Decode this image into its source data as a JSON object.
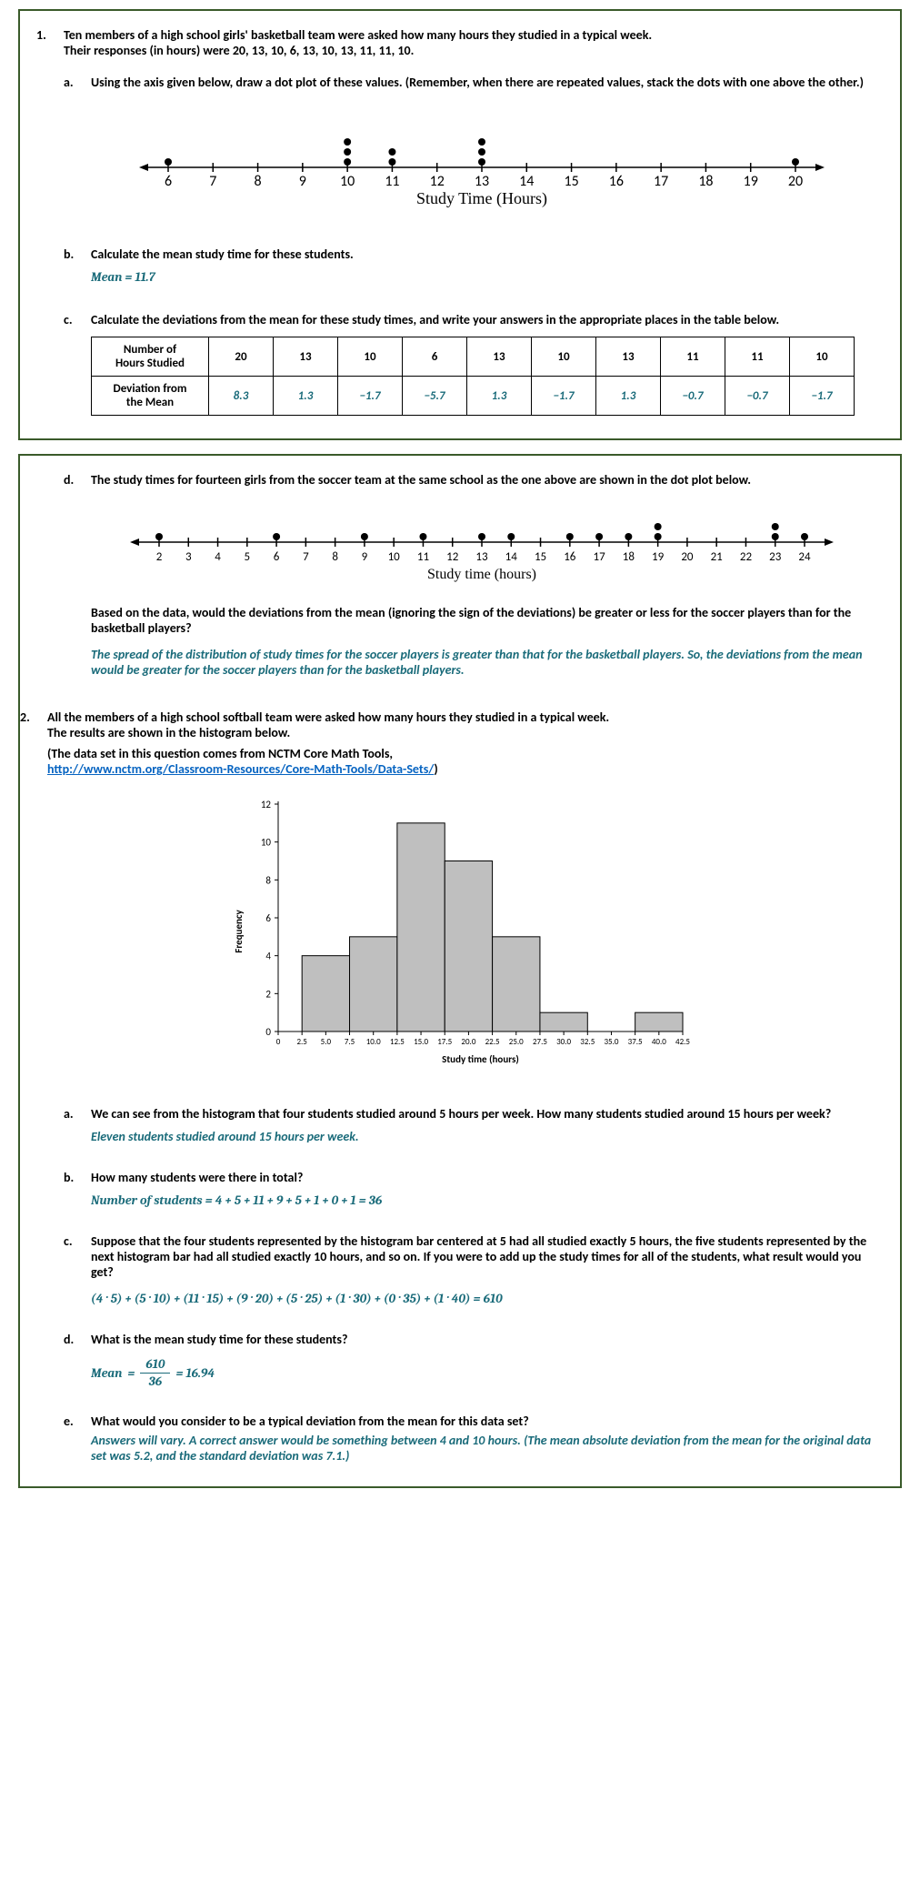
{
  "q1": {
    "num": "1.",
    "intro1": "Ten members of a high school girls' basketball team were asked how many hours they studied in a typical week.",
    "intro2_prefix": "Their responses (in hours) were ",
    "intro2_values": "20, 13, 10, 6, 13, 10, 13, 11, 11, 10",
    "intro2_suffix": ".",
    "a": {
      "letter": "a.",
      "text": "Using the axis given below, draw a dot plot of these values.  (Remember, when there are repeated values, stack the dots with one above the other.)"
    },
    "dotplot1": {
      "ticks": [
        6,
        7,
        8,
        9,
        10,
        11,
        12,
        13,
        14,
        15,
        16,
        17,
        18,
        19,
        20
      ],
      "axis_label": "Study Time (Hours)",
      "dots": {
        "6": 1,
        "10": 3,
        "11": 2,
        "13": 3,
        "20": 1
      },
      "dot_color": "#000000"
    },
    "b": {
      "letter": "b.",
      "text": "Calculate the mean study time for these students.",
      "answer": "Mean = 11.7"
    },
    "c": {
      "letter": "c.",
      "text": "Calculate the deviations from the mean for these study times, and write your answers in the appropriate places in the table below.",
      "header1": "Number of Hours Studied",
      "header2": "Deviation from the Mean",
      "hours": [
        "20",
        "13",
        "10",
        "6",
        "13",
        "10",
        "13",
        "11",
        "11",
        "10"
      ],
      "devs": [
        "8.3",
        "1.3",
        "−1.7",
        "−5.7",
        "1.3",
        "−1.7",
        "1.3",
        "−0.7",
        "−0.7",
        "−1.7"
      ]
    },
    "d": {
      "letter": "d.",
      "text": "The study times for fourteen girls from the soccer team at the same school as the one above are shown in the dot plot below.",
      "after": "Based on the data, would the deviations from the mean (ignoring the sign of the deviations) be greater or less for the soccer players than for the basketball players?",
      "answer": "The spread of the distribution of study times for the soccer players is greater than that for the basketball players.  So, the deviations from the mean would be greater for the soccer players than for the basketball players."
    },
    "dotplot2": {
      "ticks": [
        2,
        3,
        4,
        5,
        6,
        7,
        8,
        9,
        10,
        11,
        12,
        13,
        14,
        15,
        16,
        17,
        18,
        19,
        20,
        21,
        22,
        23,
        24
      ],
      "axis_label": "Study time (hours)",
      "dots": {
        "2": 1,
        "6": 1,
        "9": 1,
        "11": 1,
        "13": 1,
        "14": 1,
        "16": 1,
        "17": 1,
        "18": 1,
        "19": 2,
        "23": 2,
        "24": 1
      },
      "dot_color": "#000000"
    }
  },
  "q2": {
    "num": "2.",
    "intro1": "All the members of a high school softball team were asked how many hours they studied in a typical week.",
    "intro2": "The results are shown in the histogram below.",
    "intro3": "(The data set in this question comes from NCTM Core Math Tools,",
    "link": "http://www.nctm.org/Classroom-Resources/Core-Math-Tools/Data-Sets/",
    "link_suffix": ")",
    "histogram": {
      "ylabel": "Frequency",
      "xlabel": "Study time (hours)",
      "yticks": [
        0,
        2,
        4,
        6,
        8,
        10,
        12
      ],
      "xticks": [
        "0",
        "2.5",
        "5.0",
        "7.5",
        "10.0",
        "12.5",
        "15.0",
        "17.5",
        "20.0",
        "22.5",
        "25.0",
        "27.5",
        "30.0",
        "32.5",
        "35.0",
        "37.5",
        "40.0",
        "42.5"
      ],
      "bars": [
        {
          "center": 5,
          "height": 4
        },
        {
          "center": 10,
          "height": 5
        },
        {
          "center": 15,
          "height": 11
        },
        {
          "center": 20,
          "height": 9
        },
        {
          "center": 25,
          "height": 5
        },
        {
          "center": 30,
          "height": 1
        },
        {
          "center": 35,
          "height": 0
        },
        {
          "center": 40,
          "height": 1
        }
      ],
      "bar_fill": "#bfbfbf",
      "bar_stroke": "#000000"
    },
    "a": {
      "letter": "a.",
      "text_pre": "We can see from the histogram that four students studied around ",
      "five": "5",
      "text_mid": " hours per week.  How many students studied around ",
      "fifteen": "15",
      "text_post": " hours per week?",
      "answer": "Eleven students studied around 15 hours per week."
    },
    "b": {
      "letter": "b.",
      "text": "How many students were there in total?",
      "answer": "Number of students = 4 + 5 + 11 + 9 + 5 + 1 + 0 + 1 = 36"
    },
    "c": {
      "letter": "c.",
      "text": "Suppose that the four students represented by the histogram bar centered at 5 had all studied exactly 5 hours, the five students represented by the next histogram bar had all studied exactly 10 hours, and so on.  If you were to add up the study times for all of the students, what result would you get?",
      "answer": "(4 · 5) + (5 · 10) + (11 · 15) + (9 · 20) + (5 · 25) + (1 · 30) + (0 · 35) + (1 · 40) = 610"
    },
    "d": {
      "letter": "d.",
      "text": "What is the mean study time for these students?",
      "mean_label": "Mean",
      "numerator": "610",
      "denominator": "36",
      "result": "= 16.94"
    },
    "e": {
      "letter": "e.",
      "text": "What would you consider to be a typical deviation from the mean for this data set?",
      "answer": "Answers will vary.  A correct answer would be something between 4 and 10 hours.  (The mean absolute deviation from the mean for the original data set was 5.2, and the standard deviation was 7.1.)"
    }
  }
}
